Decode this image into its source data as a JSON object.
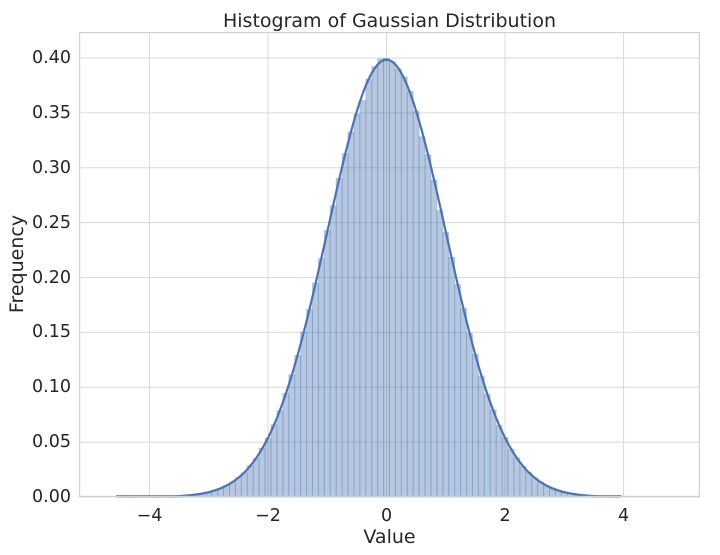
{
  "chart_data": {
    "type": "bar",
    "subtype": "histogram_with_kde",
    "title": "Histogram of Gaussian Distribution",
    "xlabel": "Value",
    "ylabel": "Frequency",
    "xlim": [
      -5.19,
      5.29
    ],
    "ylim": [
      0,
      0.4237
    ],
    "grid": true,
    "legend": "none",
    "xticks": {
      "values": [
        -4,
        -2,
        0,
        2,
        4
      ],
      "labels": [
        "−4",
        "−2",
        "0",
        "2",
        "4"
      ]
    },
    "yticks": {
      "values": [
        0.0,
        0.05,
        0.1,
        0.15,
        0.2,
        0.25,
        0.3,
        0.35,
        0.4
      ],
      "labels": [
        "0.00",
        "0.05",
        "0.10",
        "0.15",
        "0.20",
        "0.25",
        "0.30",
        "0.35",
        "0.40"
      ]
    },
    "distribution": {
      "family": "gaussian",
      "mean": 0,
      "std": 1
    },
    "kde": {
      "peak": 0.3985,
      "range": [
        -4.55,
        3.95
      ]
    },
    "bins": {
      "start": -4.75,
      "width": 0.1,
      "heights": [
        0,
        0,
        0.0001,
        0.0001,
        0.0001,
        0.0002,
        0.0002,
        0.0003,
        0.0002,
        0.0003,
        0.0004,
        0.0006,
        0.0009,
        0.0012,
        0.0018,
        0.0023,
        0.0032,
        0.0045,
        0.0059,
        0.0077,
        0.0106,
        0.0134,
        0.0177,
        0.0221,
        0.0286,
        0.0352,
        0.0446,
        0.0536,
        0.0659,
        0.0786,
        0.0944,
        0.1113,
        0.129,
        0.1504,
        0.171,
        0.1949,
        0.2172,
        0.2428,
        0.2654,
        0.2903,
        0.3129,
        0.3325,
        0.349,
        0.3614,
        0.3808,
        0.392,
        0.3992,
        0.3996,
        0.3966,
        0.3901,
        0.3828,
        0.3696,
        0.3516,
        0.3282,
        0.3118,
        0.2888,
        0.261,
        0.2412,
        0.2184,
        0.1936,
        0.172,
        0.149,
        0.1301,
        0.1103,
        0.0936,
        0.0794,
        0.0652,
        0.0543,
        0.0437,
        0.0357,
        0.028,
        0.0226,
        0.0173,
        0.0137,
        0.0103,
        0.008,
        0.0059,
        0.0045,
        0.0032,
        0.0024,
        0.0017,
        0.0013,
        0.0008,
        0.0006,
        0.0004,
        0.0003,
        0.0002,
        0,
        0,
        0,
        0,
        0,
        0,
        0,
        0
      ]
    },
    "colors": {
      "bar_fill": "rgba(76,114,176,0.40)",
      "bar_edge": "rgba(76,114,176,0.25)",
      "kde_line": "#4C72B0",
      "grid": "#dadada",
      "spine": "#d0d0d0",
      "text": "#262626",
      "background": "#ffffff"
    }
  }
}
